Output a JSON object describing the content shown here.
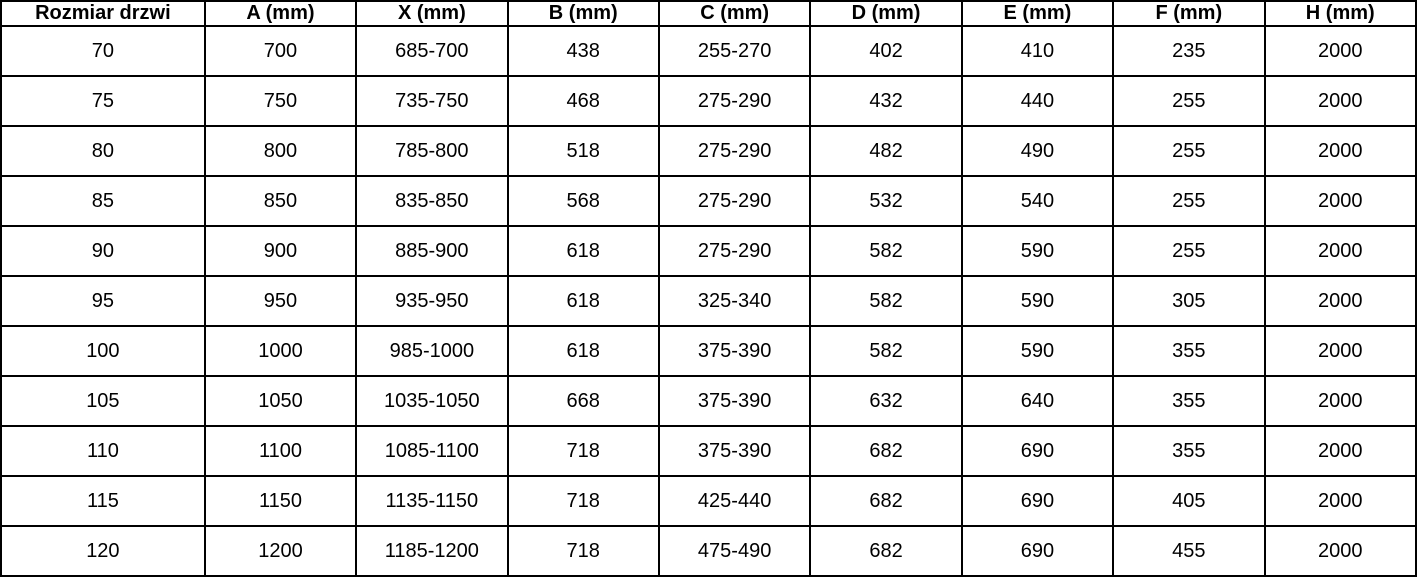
{
  "chart_data": {
    "type": "table",
    "title": "",
    "columns": [
      "Rozmiar drzwi",
      "A (mm)",
      "X (mm)",
      "B (mm)",
      "C (mm)",
      "D (mm)",
      "E (mm)",
      "F (mm)",
      "H (mm)"
    ],
    "rows": [
      [
        "70",
        "700",
        "685-700",
        "438",
        "255-270",
        "402",
        "410",
        "235",
        "2000"
      ],
      [
        "75",
        "750",
        "735-750",
        "468",
        "275-290",
        "432",
        "440",
        "255",
        "2000"
      ],
      [
        "80",
        "800",
        "785-800",
        "518",
        "275-290",
        "482",
        "490",
        "255",
        "2000"
      ],
      [
        "85",
        "850",
        "835-850",
        "568",
        "275-290",
        "532",
        "540",
        "255",
        "2000"
      ],
      [
        "90",
        "900",
        "885-900",
        "618",
        "275-290",
        "582",
        "590",
        "255",
        "2000"
      ],
      [
        "95",
        "950",
        "935-950",
        "618",
        "325-340",
        "582",
        "590",
        "305",
        "2000"
      ],
      [
        "100",
        "1000",
        "985-1000",
        "618",
        "375-390",
        "582",
        "590",
        "355",
        "2000"
      ],
      [
        "105",
        "1050",
        "1035-1050",
        "668",
        "375-390",
        "632",
        "640",
        "355",
        "2000"
      ],
      [
        "110",
        "1100",
        "1085-1100",
        "718",
        "375-390",
        "682",
        "690",
        "355",
        "2000"
      ],
      [
        "115",
        "1150",
        "1135-1150",
        "718",
        "425-440",
        "682",
        "690",
        "405",
        "2000"
      ],
      [
        "120",
        "1200",
        "1185-1200",
        "718",
        "475-490",
        "682",
        "690",
        "455",
        "2000"
      ]
    ],
    "layout": {
      "grid": true,
      "header_bold": true,
      "text_align": "center"
    },
    "colors": {
      "border": "#000000",
      "background": "#ffffff",
      "text": "#000000"
    }
  }
}
